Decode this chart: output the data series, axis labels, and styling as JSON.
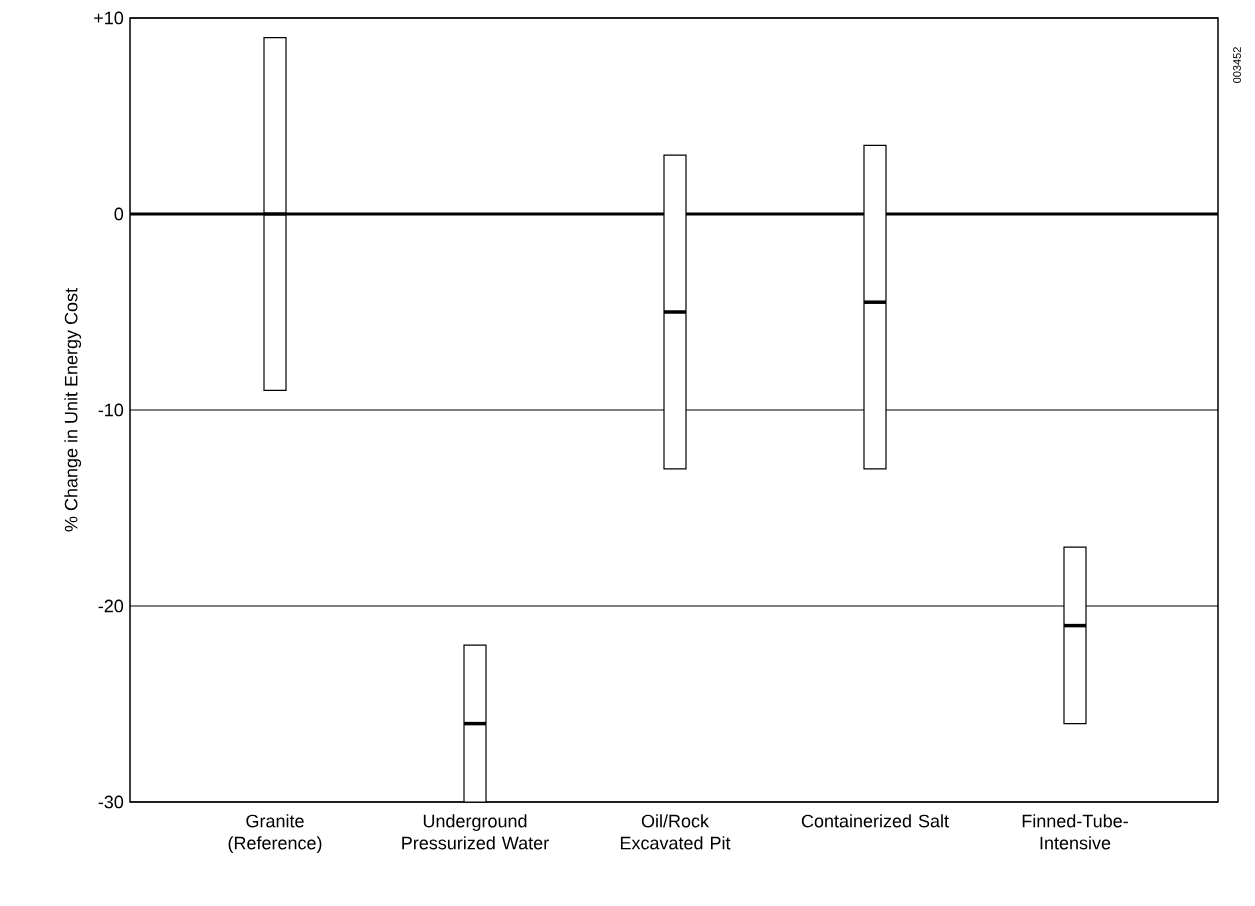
{
  "chart_data": {
    "type": "box",
    "ylabel": "% Change in Unit Energy Cost",
    "categories": [
      "Granite (Reference)",
      "Underground Pressurized Water",
      "Oil/Rock Excavated Pit",
      "Containerized Salt",
      "Finned-Tube-Intensive"
    ],
    "boxes": [
      {
        "low": -9,
        "q1": -9,
        "median": 0,
        "q3": 9,
        "high": 9
      },
      {
        "low": -30,
        "q1": -30,
        "median": -26,
        "q3": -22,
        "high": -22
      },
      {
        "low": -13,
        "q1": -13,
        "median": -5,
        "q3": 3,
        "high": 3
      },
      {
        "low": -13,
        "q1": -13,
        "median": -4.5,
        "q3": 3.5,
        "high": 3.5
      },
      {
        "low": -26,
        "q1": -26,
        "median": -21,
        "q3": -17,
        "high": -17
      }
    ],
    "color": "#ffffff",
    "ylim": [
      -30,
      10
    ],
    "yticks": [
      -30,
      -20,
      -10,
      0,
      {
        "value": 10,
        "label": "+10"
      }
    ],
    "grid": "y",
    "ref_lines": [
      {
        "axis": "y",
        "value": 0,
        "color": "#000000"
      }
    ],
    "annotations": [
      "003452"
    ]
  }
}
